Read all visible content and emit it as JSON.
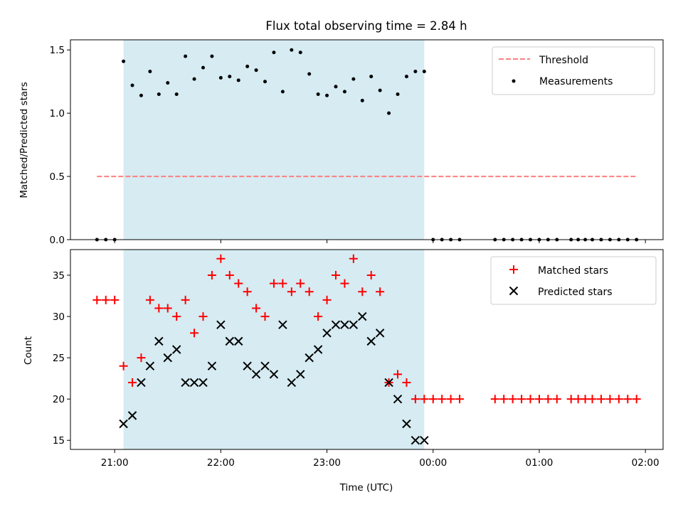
{
  "chart_data": [
    {
      "type": "scatter",
      "title": "Flux total observing time = 2.84 h",
      "ylabel": "Matched/Predicted stars",
      "xlabel": "",
      "xlim": [
        "20:35",
        "02:10"
      ],
      "ylim": [
        0,
        1.58
      ],
      "x_ticks": [
        "21:00",
        "22:00",
        "23:00",
        "00:00",
        "01:00",
        "02:00"
      ],
      "y_ticks": [
        "0.0",
        "0.5",
        "1.0",
        "1.5"
      ],
      "y_tick_values": [
        0,
        0.5,
        1.0,
        1.5
      ],
      "shaded_interval": [
        "21:05",
        "23:55"
      ],
      "shade_color": "#add8e6",
      "legend_position": "upper right",
      "threshold": {
        "name": "Threshold",
        "value": 0.5,
        "x_range": [
          "20:50",
          "01:55"
        ],
        "color": "#ff7f7f",
        "style": "dashed"
      },
      "series": [
        {
          "name": "Measurements",
          "color": "#000000",
          "marker": "dot",
          "x": [
            "20:50",
            "20:55",
            "21:00",
            "21:05",
            "21:10",
            "21:15",
            "21:20",
            "21:25",
            "21:30",
            "21:35",
            "21:40",
            "21:45",
            "21:50",
            "21:55",
            "22:00",
            "22:05",
            "22:10",
            "22:15",
            "22:20",
            "22:25",
            "22:30",
            "22:35",
            "22:40",
            "22:45",
            "22:50",
            "22:55",
            "23:00",
            "23:05",
            "23:10",
            "23:15",
            "23:20",
            "23:25",
            "23:30",
            "23:35",
            "23:40",
            "23:45",
            "23:50",
            "23:55",
            "00:00",
            "00:05",
            "00:10",
            "00:15",
            "00:35",
            "00:40",
            "00:45",
            "00:50",
            "00:55",
            "01:00",
            "01:05",
            "01:10",
            "01:18",
            "01:22",
            "01:26",
            "01:30",
            "01:35",
            "01:40",
            "01:45",
            "01:50",
            "01:55"
          ],
          "y": [
            0,
            0,
            0,
            1.41,
            1.22,
            1.14,
            1.33,
            1.15,
            1.24,
            1.15,
            1.45,
            1.27,
            1.36,
            1.45,
            1.28,
            1.29,
            1.26,
            1.37,
            1.34,
            1.25,
            1.48,
            1.17,
            1.5,
            1.48,
            1.31,
            1.15,
            1.14,
            1.21,
            1.17,
            1.27,
            1.1,
            1.29,
            1.18,
            1.0,
            1.15,
            1.29,
            1.33,
            1.33,
            0,
            0,
            0,
            0,
            0,
            0,
            0,
            0,
            0,
            0,
            0,
            0,
            0,
            0,
            0,
            0,
            0,
            0,
            0,
            0,
            0
          ]
        }
      ]
    },
    {
      "type": "scatter",
      "title": "",
      "ylabel": "Count",
      "xlabel": "Time (UTC)",
      "xlim": [
        "20:35",
        "02:10"
      ],
      "ylim": [
        13.9,
        38.1
      ],
      "x_ticks": [
        "21:00",
        "22:00",
        "23:00",
        "00:00",
        "01:00",
        "02:00"
      ],
      "y_ticks": [
        "15",
        "20",
        "25",
        "30",
        "35"
      ],
      "y_tick_values": [
        15,
        20,
        25,
        30,
        35
      ],
      "shaded_interval": [
        "21:05",
        "23:55"
      ],
      "shade_color": "#add8e6",
      "legend_position": "upper right",
      "series": [
        {
          "name": "Matched stars",
          "color": "#ff0000",
          "marker": "plus",
          "x": [
            "20:50",
            "20:55",
            "21:00",
            "21:05",
            "21:10",
            "21:15",
            "21:20",
            "21:25",
            "21:30",
            "21:35",
            "21:40",
            "21:45",
            "21:50",
            "21:55",
            "22:00",
            "22:05",
            "22:10",
            "22:15",
            "22:20",
            "22:25",
            "22:30",
            "22:35",
            "22:40",
            "22:45",
            "22:50",
            "22:55",
            "23:00",
            "23:05",
            "23:10",
            "23:15",
            "23:20",
            "23:25",
            "23:30",
            "23:35",
            "23:40",
            "23:45",
            "23:50",
            "23:55",
            "00:00",
            "00:05",
            "00:10",
            "00:15",
            "00:35",
            "00:40",
            "00:45",
            "00:50",
            "00:55",
            "01:00",
            "01:05",
            "01:10",
            "01:18",
            "01:22",
            "01:26",
            "01:30",
            "01:35",
            "01:40",
            "01:45",
            "01:50",
            "01:55"
          ],
          "y": [
            32,
            32,
            32,
            24,
            22,
            25,
            32,
            31,
            31,
            30,
            32,
            28,
            30,
            35,
            37,
            35,
            34,
            33,
            31,
            30,
            34,
            34,
            33,
            34,
            33,
            30,
            32,
            35,
            34,
            37,
            33,
            35,
            33,
            22,
            23,
            22,
            20,
            20,
            20,
            20,
            20,
            20,
            20,
            20,
            20,
            20,
            20,
            20,
            20,
            20,
            20,
            20,
            20,
            20,
            20,
            20,
            20,
            20,
            20
          ]
        },
        {
          "name": "Predicted stars",
          "color": "#000000",
          "marker": "x",
          "x": [
            "21:05",
            "21:10",
            "21:15",
            "21:20",
            "21:25",
            "21:30",
            "21:35",
            "21:40",
            "21:45",
            "21:50",
            "21:55",
            "22:00",
            "22:05",
            "22:10",
            "22:15",
            "22:20",
            "22:25",
            "22:30",
            "22:35",
            "22:40",
            "22:45",
            "22:50",
            "22:55",
            "23:00",
            "23:05",
            "23:10",
            "23:15",
            "23:20",
            "23:25",
            "23:30",
            "23:35",
            "23:40",
            "23:45",
            "23:50",
            "23:55"
          ],
          "y": [
            17,
            18,
            22,
            24,
            27,
            25,
            26,
            22,
            22,
            22,
            24,
            29,
            27,
            27,
            24,
            23,
            24,
            23,
            29,
            22,
            23,
            25,
            26,
            28,
            29,
            29,
            29,
            30,
            27,
            28,
            22,
            20,
            17,
            15,
            15
          ]
        }
      ]
    }
  ]
}
